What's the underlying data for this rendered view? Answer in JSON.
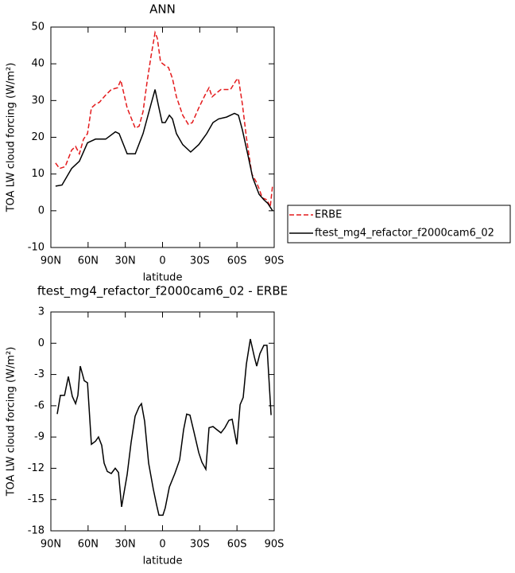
{
  "chart_data": [
    {
      "type": "line",
      "title": "ANN",
      "xlabel": "latitude",
      "ylabel": "TOA LW cloud forcing (W/m²)",
      "xlim": [
        90,
        -90
      ],
      "xticks": [
        {
          "value": 90,
          "label": "90N"
        },
        {
          "value": 60,
          "label": "60N"
        },
        {
          "value": 30,
          "label": "30N"
        },
        0,
        {
          "value": -30,
          "label": "30S"
        },
        {
          "value": -60,
          "label": "60S"
        },
        {
          "value": -90,
          "label": "90S"
        }
      ],
      "ylim": [
        -10,
        50
      ],
      "yticks": [
        -10,
        0,
        10,
        20,
        30,
        40,
        50
      ],
      "legend": "right",
      "series": [
        {
          "name": "ERBE",
          "color": "#e41a1c",
          "dash": true,
          "x": [
            86.2,
            83,
            78.5,
            73.3,
            70.1,
            67,
            63.7,
            60.5,
            57.3,
            54,
            50.9,
            45.8,
            41.3,
            36.2,
            33.6,
            28.5,
            22,
            18.9,
            15.7,
            12.5,
            9.3,
            6,
            4.2,
            1.6,
            -2.2,
            -4.8,
            -8,
            -11.2,
            -16.3,
            -20.8,
            -24,
            -29.2,
            -34.3,
            -37.5,
            -40,
            -43.3,
            -47,
            -51.6,
            -54.8,
            -59.4,
            -61.2,
            -64.4,
            -67.6,
            -72,
            -75.3,
            -77.8,
            -80.4,
            -84.2,
            -86.8,
            -88.7
          ],
          "values": [
            13,
            11.5,
            12,
            16.5,
            17.5,
            15.5,
            19.5,
            21,
            28,
            29,
            29.5,
            31.5,
            33,
            33.5,
            35.5,
            28,
            22.5,
            23,
            27,
            35,
            42,
            48.5,
            47,
            40.5,
            39.5,
            39,
            36,
            31,
            26,
            23.5,
            24,
            28,
            31.5,
            33.5,
            31,
            32,
            33,
            33,
            33,
            35.5,
            36,
            29,
            20,
            10,
            8,
            6,
            3.5,
            3,
            1,
            7
          ]
        },
        {
          "name": "ftest_mg4_refactor_f2000cam6_02",
          "color": "#000000",
          "dash": false,
          "x": [
            86.2,
            81,
            73.3,
            67,
            60.5,
            54,
            45.8,
            38,
            35,
            28.5,
            22,
            15.7,
            9.3,
            6,
            2.9,
            0.3,
            -2.2,
            -5.5,
            -8,
            -11.2,
            -16.3,
            -22.7,
            -29.2,
            -35.6,
            -40.7,
            -45.2,
            -51.6,
            -58,
            -61.2,
            -64.4,
            -68.9,
            -72.7,
            -77.8,
            -81.7,
            -84.9,
            -88.7
          ],
          "values": [
            6.7,
            7,
            11.5,
            13.5,
            18.5,
            19.5,
            19.5,
            21.5,
            21,
            15.5,
            15.5,
            21,
            29,
            33,
            28,
            24,
            24,
            26,
            25,
            21,
            18,
            16,
            18,
            21,
            24,
            25,
            25.5,
            26.5,
            26,
            22,
            15,
            9,
            4.5,
            3,
            2,
            0
          ]
        }
      ]
    },
    {
      "type": "line",
      "title": "ftest_mg4_refactor_f2000cam6_02 - ERBE",
      "xlabel": "latitude",
      "ylabel": "TOA LW cloud forcing (W/m²)",
      "xlim": [
        90,
        -90
      ],
      "xticks": [
        {
          "value": 90,
          "label": "90N"
        },
        {
          "value": 60,
          "label": "60N"
        },
        {
          "value": 30,
          "label": "30N"
        },
        0,
        {
          "value": -30,
          "label": "30S"
        },
        {
          "value": -60,
          "label": "60S"
        },
        {
          "value": -90,
          "label": "90S"
        }
      ],
      "ylim": [
        -18,
        3
      ],
      "yticks": [
        -18,
        -15,
        -12,
        -9,
        -6,
        -3,
        0,
        3
      ],
      "series": [
        {
          "color": "#000000",
          "dash": false,
          "x": [
            84.9,
            82.3,
            79,
            75.9,
            72.7,
            70.1,
            68.2,
            66.3,
            63.1,
            60.5,
            57.3,
            54,
            51.6,
            49,
            47.1,
            44.5,
            41.3,
            38.1,
            35.5,
            33,
            28.5,
            25.3,
            22.1,
            18.9,
            17,
            14.4,
            11.2,
            7.4,
            4.8,
            2.9,
            -0.3,
            -2.2,
            -5.5,
            -9.9,
            -13.8,
            -17,
            -19.5,
            -22.1,
            -25.3,
            -29.2,
            -31.7,
            -34.9,
            -37.5,
            -40.7,
            -43.9,
            -47.1,
            -50.3,
            -53.5,
            -56.1,
            -59.9,
            -62.5,
            -65,
            -67.6,
            -70.8,
            -74,
            -75.9,
            -78.5,
            -81.7,
            -84.2,
            -87.5
          ],
          "values": [
            -6.8,
            -5,
            -5,
            -3.2,
            -5.1,
            -5.8,
            -5,
            -2.2,
            -3.6,
            -3.8,
            -9.7,
            -9.4,
            -9,
            -9.8,
            -11.5,
            -12.3,
            -12.5,
            -12,
            -12.4,
            -15.7,
            -12.6,
            -9.5,
            -7,
            -6.1,
            -5.8,
            -7.5,
            -11.5,
            -14,
            -15.5,
            -16.5,
            -16.5,
            -15.8,
            -13.8,
            -12.5,
            -11.2,
            -8.3,
            -6.8,
            -6.9,
            -8.5,
            -10.5,
            -11.4,
            -12.1,
            -8.1,
            -8,
            -8.3,
            -8.6,
            -8.1,
            -7.4,
            -7.3,
            -9.7,
            -5.9,
            -5.2,
            -2,
            0.4,
            -1.3,
            -2.2,
            -1,
            -0.2,
            -0.2,
            -6.9
          ]
        }
      ]
    }
  ]
}
